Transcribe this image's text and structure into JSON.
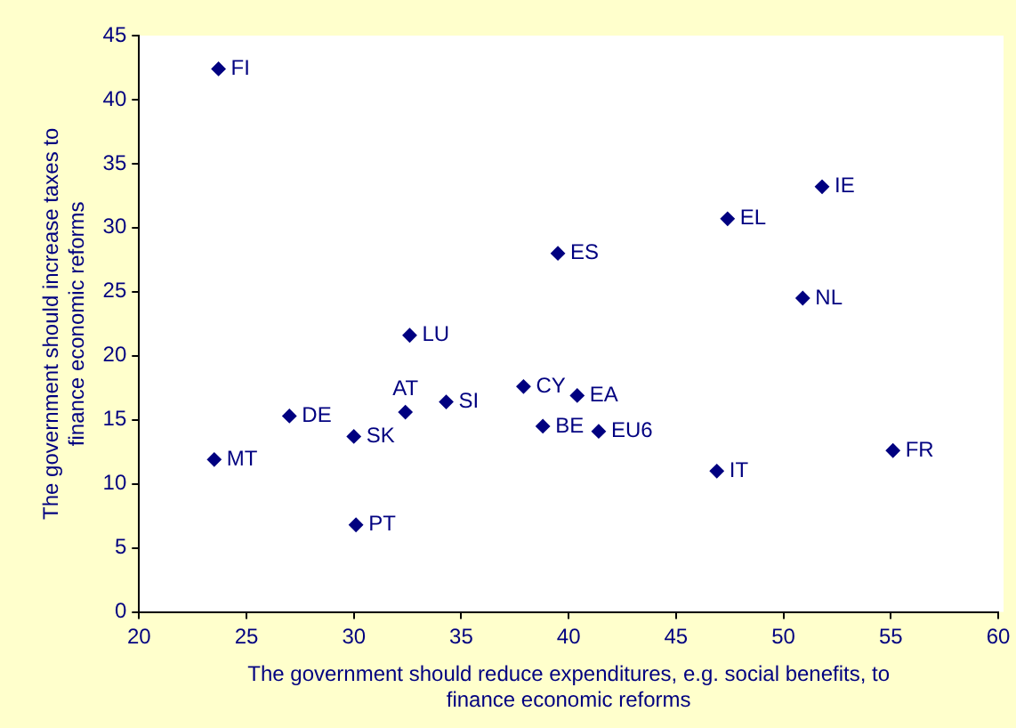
{
  "chart_data": {
    "type": "scatter",
    "xlabel": "The government should reduce expenditures, e.g. social benefits, to finance economic reforms",
    "ylabel": "The government should increase taxes to finance economic reforms",
    "series": [
      {
        "color": "#000080",
        "x": [
          23.7,
          23.5,
          27.0,
          30.0,
          30.1,
          32.4,
          32.6,
          34.3,
          37.9,
          38.8,
          40.4,
          41.4,
          46.9,
          39.5,
          47.4,
          51.8,
          50.9,
          55.1
        ],
        "values": [
          42.4,
          11.9,
          15.3,
          13.7,
          6.8,
          15.6,
          21.6,
          16.4,
          17.6,
          14.5,
          16.9,
          14.1,
          11.0,
          28.0,
          30.7,
          33.2,
          24.5,
          12.6
        ]
      }
    ],
    "annotations": [
      {
        "text": "FI",
        "x": 23.7,
        "y": 42.4
      },
      {
        "text": "MT",
        "x": 23.5,
        "y": 11.9
      },
      {
        "text": "DE",
        "x": 27.0,
        "y": 15.3
      },
      {
        "text": "SK",
        "x": 30.0,
        "y": 13.7
      },
      {
        "text": "PT",
        "x": 30.1,
        "y": 6.8
      },
      {
        "text": "AT",
        "x": 32.4,
        "y": 15.6
      },
      {
        "text": "LU",
        "x": 32.6,
        "y": 21.6
      },
      {
        "text": "SI",
        "x": 34.3,
        "y": 16.4
      },
      {
        "text": "CY",
        "x": 37.9,
        "y": 17.6
      },
      {
        "text": "BE",
        "x": 38.8,
        "y": 14.5
      },
      {
        "text": "EA",
        "x": 40.4,
        "y": 16.9
      },
      {
        "text": "EU6",
        "x": 41.4,
        "y": 14.1
      },
      {
        "text": "IT",
        "x": 46.9,
        "y": 11.0
      },
      {
        "text": "ES",
        "x": 39.5,
        "y": 28.0
      },
      {
        "text": "EL",
        "x": 47.4,
        "y": 30.7
      },
      {
        "text": "IE",
        "x": 51.8,
        "y": 33.2
      },
      {
        "text": "NL",
        "x": 50.9,
        "y": 24.5
      },
      {
        "text": "FR",
        "x": 55.1,
        "y": 12.6
      }
    ],
    "xlim": [
      20,
      60
    ],
    "xticks": [
      20,
      25,
      30,
      35,
      40,
      45,
      50,
      55,
      60
    ],
    "ylim": [
      0,
      45
    ],
    "yticks": [
      0,
      5,
      10,
      15,
      20,
      25,
      30,
      35,
      40,
      45
    ],
    "marker": "diamond",
    "grid": false,
    "legend": false
  }
}
